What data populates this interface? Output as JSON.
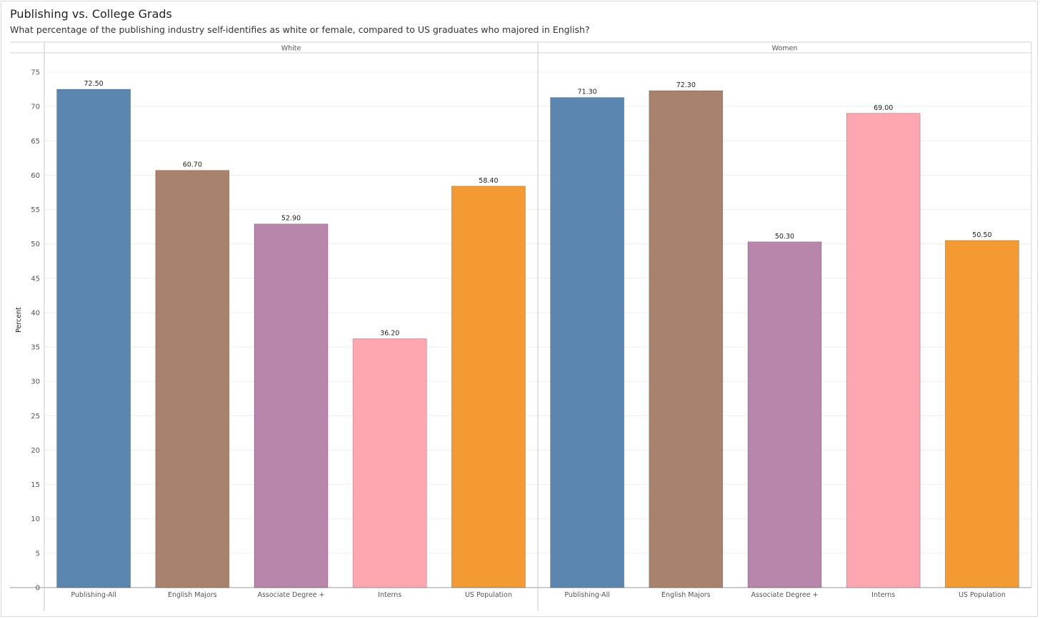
{
  "title": "Publishing vs. College Grads",
  "subtitle": "What percentage of the publishing industry self-identifies as white or female, compared to US graduates who majored in English?",
  "chart_data": {
    "type": "bar",
    "ylabel": "Percent",
    "ylim": [
      0,
      75
    ],
    "yticks": [
      0,
      5,
      10,
      15,
      20,
      25,
      30,
      35,
      40,
      45,
      50,
      55,
      60,
      65,
      70,
      75
    ],
    "grid": true,
    "categories": [
      "Publishing-All",
      "English Majors",
      "Associate Degree +",
      "Interns",
      "US Population"
    ],
    "colors": [
      "#5a86b0",
      "#a8826d",
      "#b986ab",
      "#ffa7b0",
      "#f39a33"
    ],
    "panels": [
      {
        "name": "White",
        "values": [
          72.5,
          60.7,
          52.9,
          36.2,
          58.4
        ],
        "labels": [
          "72.50",
          "60.70",
          "52.90",
          "36.20",
          "58.40"
        ]
      },
      {
        "name": "Women",
        "values": [
          71.3,
          72.3,
          50.3,
          69.0,
          50.5
        ],
        "labels": [
          "71.30",
          "72.30",
          "50.30",
          "69.00",
          "50.50"
        ]
      }
    ]
  }
}
